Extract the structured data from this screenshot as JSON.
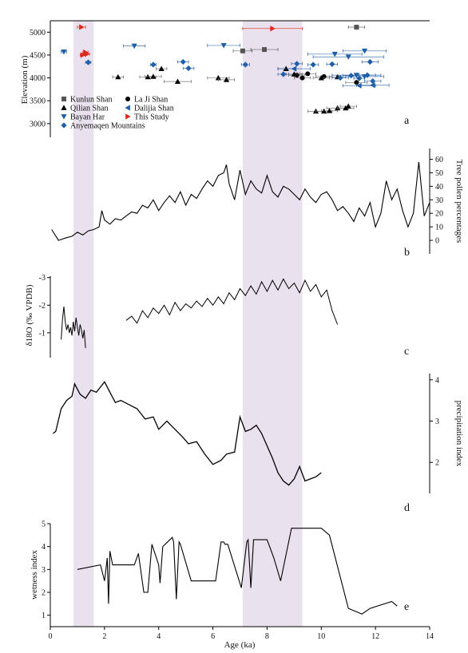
{
  "figure": {
    "xlabel": "Age (ka)",
    "xlim": [
      0,
      14
    ],
    "xticks": [
      "0",
      "2",
      "4",
      "6",
      "8",
      "10",
      "12",
      "14"
    ],
    "highlight_bands": [
      [
        0.85,
        1.6
      ],
      [
        7.1,
        9.3
      ]
    ],
    "band_color": "#e9e1ee"
  },
  "chart_data": [
    {
      "type": "scatter",
      "panel_label": "a",
      "ylabel": "Elevation (m)",
      "ylim": [
        2700,
        5250
      ],
      "yticks": [
        "3000",
        "3500",
        "4000",
        "4500",
        "5000"
      ],
      "legend_position": "bottom-left",
      "legend": [
        {
          "label": "Kunlun Shan",
          "series": "kunlun"
        },
        {
          "label": "La Ji Shan",
          "series": "laji"
        },
        {
          "label": "Qilian Shan",
          "series": "qilian"
        },
        {
          "label": "Dalijia Shan",
          "series": "dalijia"
        },
        {
          "label": "Bayan Har",
          "series": "bayanhar"
        },
        {
          "label": "This Study",
          "series": "thisstudy"
        },
        {
          "label": "Anyemaqen Mountains",
          "series": "anyemaqen"
        }
      ],
      "series": [
        {
          "name": "Kunlun Shan",
          "key": "kunlun",
          "marker": "square",
          "color": "#555555",
          "points": [
            [
              11.3,
              5110,
              0.3
            ],
            [
              7.1,
              4590,
              0.35
            ],
            [
              7.9,
              4620,
              0.5
            ]
          ]
        },
        {
          "name": "La Ji Shan",
          "key": "laji",
          "marker": "circle",
          "color": "#000000",
          "points": [
            [
              9.1,
              4060,
              0.3
            ],
            [
              9.5,
              4090,
              0.3
            ],
            [
              9.3,
              4000,
              0.3
            ],
            [
              10.1,
              4030,
              0.3
            ],
            [
              11.3,
              3900,
              0.4
            ]
          ]
        },
        {
          "name": "Qilian Shan",
          "key": "qilian",
          "marker": "triangle-up",
          "color": "#000000",
          "points": [
            [
              2.5,
              4020,
              0.2
            ],
            [
              3.6,
              4020,
              0.3
            ],
            [
              3.8,
              4030,
              0.3
            ],
            [
              4.1,
              4200,
              0.2
            ],
            [
              4.7,
              3920,
              0.5
            ],
            [
              6.2,
              4000,
              0.4
            ],
            [
              6.5,
              3960,
              0.3
            ],
            [
              8.7,
              4200,
              0.3
            ],
            [
              9.0,
              4080,
              0.3
            ],
            [
              10.0,
              4000,
              0.3
            ],
            [
              10.6,
              4020,
              0.3
            ],
            [
              9.8,
              3270,
              0.3
            ],
            [
              10.1,
              3270,
              0.3
            ],
            [
              10.3,
              3280,
              0.3
            ],
            [
              10.6,
              3340,
              0.4
            ],
            [
              10.9,
              3340,
              0.3
            ],
            [
              11.0,
              3380,
              0.3
            ]
          ]
        },
        {
          "name": "Dalijia Shan",
          "key": "dalijia",
          "marker": "triangle-left",
          "color": "#1f5fa8",
          "points": [
            [
              9.0,
              4200,
              0.6
            ],
            [
              11.4,
              3830,
              0.6
            ],
            [
              11.9,
              3840,
              0.6
            ]
          ]
        },
        {
          "name": "Bayan Har",
          "key": "bayanhar",
          "marker": "triangle-down",
          "color": "#1f5fa8",
          "points": [
            [
              0.5,
              4570,
              0.1
            ],
            [
              3.1,
              4700,
              0.4
            ],
            [
              6.4,
              4710,
              0.6
            ],
            [
              10.5,
              4520,
              1.0
            ],
            [
              11.0,
              4460,
              1.3
            ],
            [
              11.6,
              4590,
              0.8
            ],
            [
              11.3,
              4060,
              0.9
            ],
            [
              11.6,
              4030,
              0.7
            ]
          ]
        },
        {
          "name": "This Study",
          "key": "thisstudy",
          "marker": "triangle-right",
          "color": "#e0261b",
          "points": [
            [
              1.15,
              5110,
              0.15
            ],
            [
              1.2,
              4500,
              0.1
            ],
            [
              1.3,
              4560,
              0.1
            ],
            [
              1.35,
              4520,
              0.1
            ],
            [
              8.2,
              5080,
              1.1
            ]
          ]
        },
        {
          "name": "Anyemaqen Mountains",
          "key": "anyemaqen",
          "marker": "diamond",
          "color": "#1f5fa8",
          "points": [
            [
              1.4,
              4340,
              0.1
            ],
            [
              3.8,
              4290,
              0.1
            ],
            [
              4.9,
              4350,
              0.2
            ],
            [
              5.1,
              4210,
              0.2
            ],
            [
              7.2,
              4290,
              0.15
            ],
            [
              8.6,
              4080,
              0.2
            ],
            [
              9.1,
              4310,
              0.2
            ],
            [
              9.7,
              4290,
              0.2
            ],
            [
              10.4,
              4300,
              0.2
            ],
            [
              10.7,
              4000,
              0.3
            ],
            [
              11.1,
              4050,
              0.3
            ],
            [
              11.4,
              3990,
              0.2
            ],
            [
              11.7,
              4060,
              0.3
            ],
            [
              11.8,
              4350,
              0.3
            ],
            [
              11.9,
              3930,
              0.3
            ]
          ]
        }
      ]
    },
    {
      "type": "line",
      "panel_label": "b",
      "ylabel": "Tree pollen percentages",
      "axis_side": "right",
      "ylim": [
        -10,
        68
      ],
      "yticks": [
        "0",
        "10",
        "20",
        "30",
        "40",
        "50",
        "60"
      ],
      "series": [
        {
          "x": [
            0.05,
            0.3,
            0.6,
            0.8,
            1.0,
            1.2,
            1.4,
            1.6,
            1.8,
            1.9,
            2.0,
            2.2,
            2.4,
            2.6,
            2.8,
            3.0,
            3.2,
            3.4,
            3.6,
            3.8,
            4.0,
            4.2,
            4.4,
            4.6,
            4.8,
            5.0,
            5.2,
            5.4,
            5.6,
            5.8,
            6.0,
            6.2,
            6.4,
            6.5,
            6.6,
            6.8,
            7.0,
            7.2,
            7.4,
            7.6,
            7.8,
            8.0,
            8.2,
            8.4,
            8.6,
            8.8,
            9.0,
            9.2,
            9.4,
            9.6,
            9.8,
            10.0,
            10.2,
            10.4,
            10.6,
            10.8,
            11.0,
            11.2,
            11.4,
            11.6,
            11.8,
            12.0,
            12.2,
            12.4,
            12.6,
            12.8,
            13.0,
            13.2,
            13.4,
            13.6,
            13.8,
            14.0
          ],
          "values": [
            8,
            0,
            2,
            3,
            6,
            4,
            7,
            8,
            10,
            22,
            15,
            12,
            16,
            15,
            18,
            21,
            20,
            26,
            24,
            30,
            22,
            28,
            33,
            28,
            36,
            26,
            34,
            31,
            38,
            44,
            40,
            48,
            50,
            56,
            42,
            30,
            52,
            34,
            44,
            38,
            35,
            48,
            36,
            32,
            40,
            38,
            34,
            30,
            38,
            32,
            28,
            34,
            36,
            30,
            22,
            25,
            20,
            14,
            24,
            18,
            28,
            10,
            20,
            44,
            30,
            38,
            22,
            10,
            20,
            58,
            18,
            28
          ]
        }
      ]
    },
    {
      "type": "line",
      "panel_label": "c",
      "ylabel": "δ18O (‰ VPDB)",
      "ylim": [
        -3.05,
        -0.1
      ],
      "y_inverted": true,
      "yticks": [
        "-3",
        "-2",
        "-1"
      ],
      "series": [
        {
          "name": "",
          "x": [
            0.4,
            0.45,
            0.5,
            0.55,
            0.6,
            0.65,
            0.7,
            0.75,
            0.8,
            0.85,
            0.9,
            0.95,
            1.0,
            1.05,
            1.1,
            1.15,
            1.2,
            1.25,
            1.3
          ],
          "values": [
            -0.75,
            -1.5,
            -1.95,
            -1.4,
            -1.1,
            -1.3,
            -1.0,
            -1.2,
            -0.9,
            -1.4,
            -1.05,
            -1.55,
            -1.2,
            -0.9,
            -1.3,
            -1.1,
            -0.8,
            -1.1,
            -0.45
          ]
        },
        {
          "name": "",
          "x": [
            2.8,
            3.0,
            3.2,
            3.4,
            3.6,
            3.8,
            4.0,
            4.2,
            4.4,
            4.6,
            4.8,
            5.0,
            5.2,
            5.4,
            5.6,
            5.8,
            6.0,
            6.2,
            6.4,
            6.6,
            6.8,
            7.0,
            7.2,
            7.4,
            7.6,
            7.8,
            8.0,
            8.2,
            8.4,
            8.6,
            8.8,
            9.0,
            9.2,
            9.4,
            9.6,
            9.8,
            10.0,
            10.2,
            10.4,
            10.6
          ],
          "values": [
            -1.45,
            -1.6,
            -1.35,
            -1.8,
            -1.55,
            -1.9,
            -1.7,
            -2.0,
            -1.65,
            -2.1,
            -1.8,
            -2.05,
            -1.9,
            -2.15,
            -1.95,
            -2.25,
            -2.0,
            -2.3,
            -2.05,
            -2.45,
            -2.2,
            -2.6,
            -2.35,
            -2.7,
            -2.4,
            -2.85,
            -2.5,
            -2.9,
            -2.55,
            -2.95,
            -2.6,
            -2.8,
            -2.45,
            -2.9,
            -2.5,
            -2.75,
            -2.3,
            -2.55,
            -1.8,
            -1.3
          ]
        }
      ]
    },
    {
      "type": "line",
      "panel_label": "d",
      "ylabel": "precipitation index",
      "axis_side": "right",
      "ylim": [
        1.25,
        4.15
      ],
      "yticks": [
        "2",
        "3",
        "4"
      ],
      "series": [
        {
          "x": [
            0.1,
            0.2,
            0.4,
            0.6,
            0.8,
            0.9,
            1.1,
            1.3,
            1.5,
            1.7,
            2.0,
            2.2,
            2.4,
            2.6,
            2.9,
            3.2,
            3.5,
            3.8,
            4.0,
            4.3,
            4.6,
            4.9,
            5.1,
            5.4,
            5.7,
            6.0,
            6.3,
            6.5,
            6.8,
            7.0,
            7.2,
            7.4,
            7.6,
            7.8,
            8.0,
            8.2,
            8.4,
            8.6,
            8.8,
            9.0,
            9.2,
            9.4,
            9.6,
            9.8,
            10.0
          ],
          "values": [
            2.7,
            2.75,
            3.3,
            3.5,
            3.6,
            3.9,
            3.65,
            3.55,
            3.75,
            3.7,
            3.95,
            3.7,
            3.45,
            3.5,
            3.4,
            3.3,
            3.05,
            3.1,
            2.8,
            3.0,
            2.8,
            2.6,
            2.45,
            2.5,
            2.2,
            1.95,
            2.05,
            2.2,
            2.25,
            3.1,
            2.75,
            2.8,
            2.9,
            2.7,
            2.4,
            2.1,
            1.75,
            1.55,
            1.45,
            1.6,
            1.9,
            1.55,
            1.6,
            1.65,
            1.75
          ]
        }
      ]
    },
    {
      "type": "line",
      "panel_label": "e",
      "ylabel": "wetness index",
      "xlabel": "Age (ka)",
      "ylim": [
        0.5,
        5
      ],
      "yticks": [
        "1",
        "2",
        "3",
        "4",
        "5"
      ],
      "series": [
        {
          "x": [
            1.0,
            1.85,
            2.0,
            2.1,
            2.15,
            2.2,
            2.3,
            3.1,
            3.25,
            3.45,
            3.6,
            3.75,
            4.0,
            4.05,
            4.15,
            4.5,
            4.55,
            4.65,
            4.75,
            4.8,
            5.2,
            5.3,
            6.1,
            6.3,
            6.4,
            6.45,
            6.55,
            7.05,
            7.25,
            7.3,
            7.4,
            7.5,
            8.0,
            8.25,
            8.5,
            8.9,
            9.1,
            9.2,
            9.3,
            9.4,
            9.6,
            9.8,
            10.0,
            10.3,
            11.0,
            11.5,
            11.8,
            12.6,
            12.8
          ],
          "values": [
            3.0,
            3.2,
            2.5,
            3.5,
            1.5,
            3.8,
            3.2,
            3.2,
            3.7,
            2.0,
            2.0,
            4.1,
            3.2,
            2.4,
            4.0,
            4.4,
            4.2,
            1.7,
            4.2,
            4.1,
            2.5,
            2.5,
            2.5,
            4.2,
            4.2,
            4.1,
            4.1,
            2.2,
            4.2,
            4.3,
            2.2,
            4.3,
            4.3,
            3.5,
            2.5,
            4.8,
            4.8,
            4.8,
            4.8,
            4.8,
            4.8,
            4.8,
            4.8,
            4.5,
            1.3,
            1.05,
            1.3,
            1.6,
            1.4
          ]
        }
      ]
    }
  ]
}
